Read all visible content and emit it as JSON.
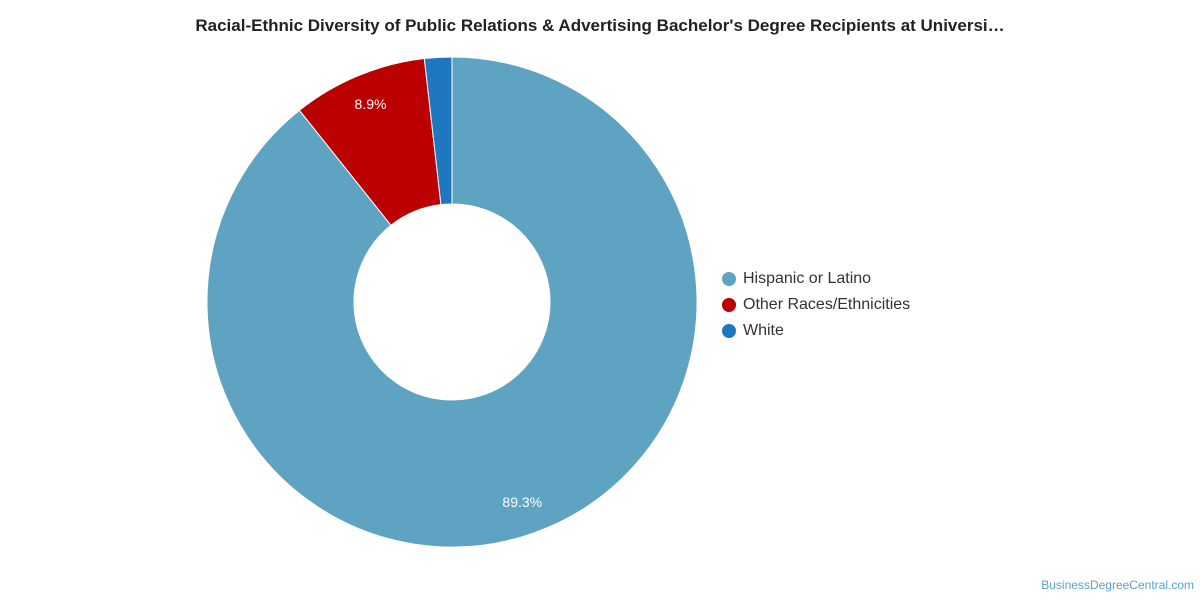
{
  "chart_data": {
    "type": "pie",
    "style": "donut",
    "title": "Racial-Ethnic Diversity of Public Relations & Advertising Bachelor's Degree Recipients at Universi…",
    "categories": [
      "Hispanic or Latino",
      "Other Races/Ethnicities",
      "White"
    ],
    "values": [
      89.3,
      8.9,
      1.8
    ],
    "data_labels": [
      "89.3%",
      "8.9%",
      ""
    ],
    "colors": [
      "#5ea3c1",
      "#bb0000",
      "#1f77c0"
    ],
    "legend_position": "right"
  },
  "footer": {
    "source": "BusinessDegreeCentral.com"
  }
}
